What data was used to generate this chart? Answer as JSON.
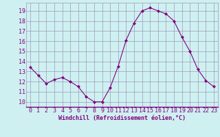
{
  "x": [
    0,
    1,
    2,
    3,
    4,
    5,
    6,
    7,
    8,
    9,
    10,
    11,
    12,
    13,
    14,
    15,
    16,
    17,
    18,
    19,
    20,
    21,
    22,
    23
  ],
  "y": [
    13.4,
    12.6,
    11.8,
    12.2,
    12.4,
    12.0,
    11.5,
    10.5,
    10.0,
    10.0,
    11.4,
    13.5,
    16.1,
    17.8,
    19.0,
    19.3,
    19.0,
    18.7,
    18.0,
    16.4,
    15.0,
    13.2,
    12.1,
    11.5
  ],
  "line_color": "#800080",
  "marker": "D",
  "marker_size": 2,
  "bg_color": "#cff0f0",
  "grid_color": "#9999bb",
  "xlabel": "Windchill (Refroidissement éolien,°C)",
  "xlabel_color": "#800080",
  "tick_color": "#800080",
  "label_fontsize": 6,
  "xlabel_fontsize": 6,
  "ylim": [
    9.5,
    19.8
  ],
  "xlim": [
    -0.5,
    23.5
  ],
  "yticks": [
    10,
    11,
    12,
    13,
    14,
    15,
    16,
    17,
    18,
    19
  ],
  "xticks": [
    0,
    1,
    2,
    3,
    4,
    5,
    6,
    7,
    8,
    9,
    10,
    11,
    12,
    13,
    14,
    15,
    16,
    17,
    18,
    19,
    20,
    21,
    22,
    23
  ]
}
